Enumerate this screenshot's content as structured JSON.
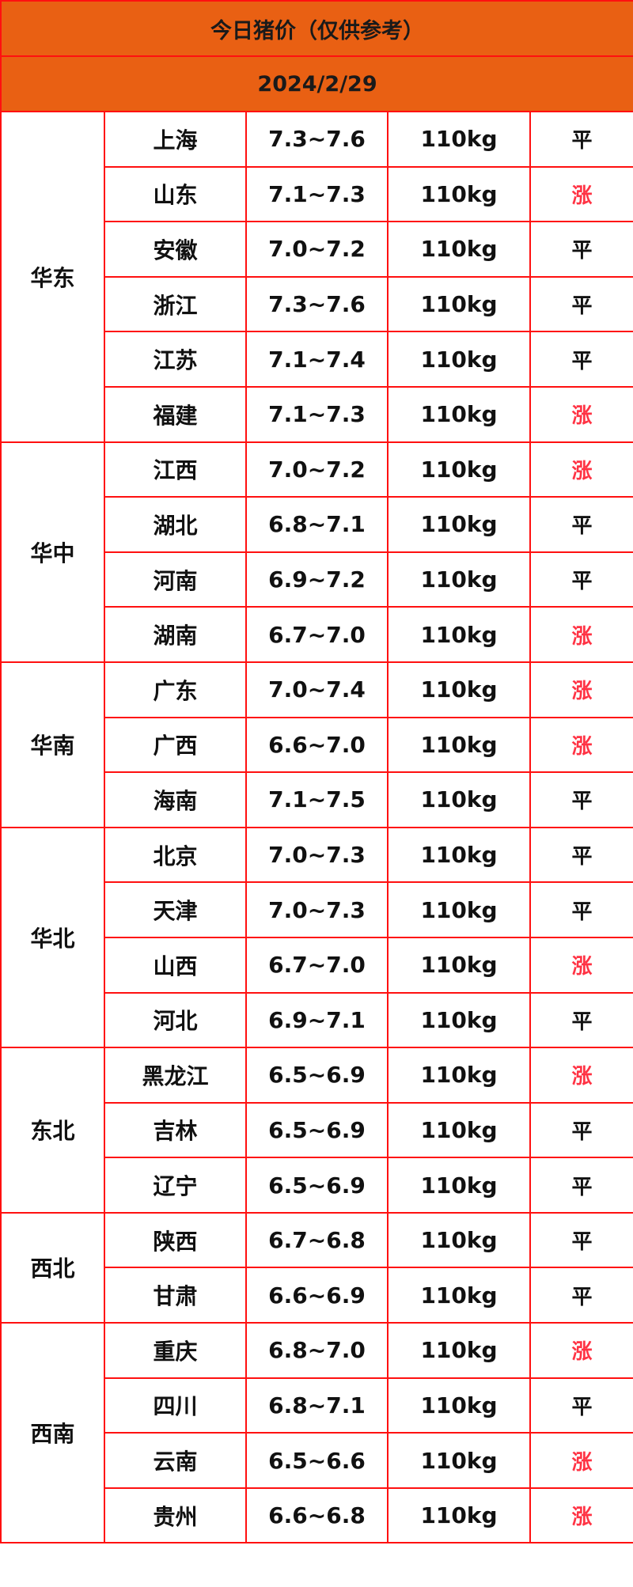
{
  "title": "今日猪价（仅供参考）",
  "date": "2024/2/29",
  "colors": {
    "header_bg": "#e96013",
    "border": "#ff1010",
    "up": "#ff3344",
    "flat": "#111111"
  },
  "regions": [
    {
      "name": "华东",
      "rows": [
        {
          "province": "上海",
          "price": "7.3~7.6",
          "weight": "110kg",
          "trend": "平"
        },
        {
          "province": "山东",
          "price": "7.1~7.3",
          "weight": "110kg",
          "trend": "涨"
        },
        {
          "province": "安徽",
          "price": "7.0~7.2",
          "weight": "110kg",
          "trend": "平"
        },
        {
          "province": "浙江",
          "price": "7.3~7.6",
          "weight": "110kg",
          "trend": "平"
        },
        {
          "province": "江苏",
          "price": "7.1~7.4",
          "weight": "110kg",
          "trend": "平"
        },
        {
          "province": "福建",
          "price": "7.1~7.3",
          "weight": "110kg",
          "trend": "涨"
        }
      ]
    },
    {
      "name": "华中",
      "rows": [
        {
          "province": "江西",
          "price": "7.0~7.2",
          "weight": "110kg",
          "trend": "涨"
        },
        {
          "province": "湖北",
          "price": "6.8~7.1",
          "weight": "110kg",
          "trend": "平"
        },
        {
          "province": "河南",
          "price": "6.9~7.2",
          "weight": "110kg",
          "trend": "平"
        },
        {
          "province": "湖南",
          "price": "6.7~7.0",
          "weight": "110kg",
          "trend": "涨"
        }
      ]
    },
    {
      "name": "华南",
      "rows": [
        {
          "province": "广东",
          "price": "7.0~7.4",
          "weight": "110kg",
          "trend": "涨"
        },
        {
          "province": "广西",
          "price": "6.6~7.0",
          "weight": "110kg",
          "trend": "涨"
        },
        {
          "province": "海南",
          "price": "7.1~7.5",
          "weight": "110kg",
          "trend": "平"
        }
      ]
    },
    {
      "name": "华北",
      "rows": [
        {
          "province": "北京",
          "price": "7.0~7.3",
          "weight": "110kg",
          "trend": "平"
        },
        {
          "province": "天津",
          "price": "7.0~7.3",
          "weight": "110kg",
          "trend": "平"
        },
        {
          "province": "山西",
          "price": "6.7~7.0",
          "weight": "110kg",
          "trend": "涨"
        },
        {
          "province": "河北",
          "price": "6.9~7.1",
          "weight": "110kg",
          "trend": "平"
        }
      ]
    },
    {
      "name": "东北",
      "rows": [
        {
          "province": "黑龙江",
          "price": "6.5~6.9",
          "weight": "110kg",
          "trend": "涨"
        },
        {
          "province": "吉林",
          "price": "6.5~6.9",
          "weight": "110kg",
          "trend": "平"
        },
        {
          "province": "辽宁",
          "price": "6.5~6.9",
          "weight": "110kg",
          "trend": "平"
        }
      ]
    },
    {
      "name": "西北",
      "rows": [
        {
          "province": "陕西",
          "price": "6.7~6.8",
          "weight": "110kg",
          "trend": "平"
        },
        {
          "province": "甘肃",
          "price": "6.6~6.9",
          "weight": "110kg",
          "trend": "平"
        }
      ]
    },
    {
      "name": "西南",
      "rows": [
        {
          "province": "重庆",
          "price": "6.8~7.0",
          "weight": "110kg",
          "trend": "涨"
        },
        {
          "province": "四川",
          "price": "6.8~7.1",
          "weight": "110kg",
          "trend": "平"
        },
        {
          "province": "云南",
          "price": "6.5~6.6",
          "weight": "110kg",
          "trend": "涨"
        },
        {
          "province": "贵州",
          "price": "6.6~6.8",
          "weight": "110kg",
          "trend": "涨"
        }
      ]
    }
  ]
}
